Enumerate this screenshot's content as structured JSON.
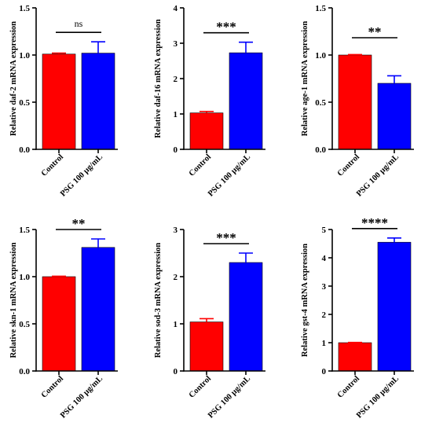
{
  "colors": {
    "control": "#ff0000",
    "treatment": "#0000ff",
    "axis": "#000000"
  },
  "chart_data": [
    {
      "type": "bar",
      "categories": [
        "Control",
        "PSG 100 μg/mL"
      ],
      "values": [
        1.01,
        1.02
      ],
      "errors": [
        0.01,
        0.12
      ],
      "ylabel": "Relative daf-2 mRNA expression",
      "ylim": [
        0,
        1.5
      ],
      "yticks": [
        "0.0",
        "0.5",
        "1.0",
        "1.5"
      ],
      "significance": "ns"
    },
    {
      "type": "bar",
      "categories": [
        "Control",
        "PSG 100 μg/mL"
      ],
      "values": [
        1.03,
        2.73
      ],
      "errors": [
        0.04,
        0.3
      ],
      "ylabel": "Relative daf-16 mRNA expression",
      "ylim": [
        0,
        4
      ],
      "yticks": [
        "0",
        "1",
        "2",
        "3",
        "4"
      ],
      "significance": "***"
    },
    {
      "type": "bar",
      "categories": [
        "Control",
        "PSG 100 μg/mL"
      ],
      "values": [
        1.0,
        0.7
      ],
      "errors": [
        0.005,
        0.08
      ],
      "ylabel": "Relative age-1 mRNA expression",
      "ylim": [
        0,
        1.5
      ],
      "yticks": [
        "0.0",
        "0.5",
        "1.0",
        "1.5"
      ],
      "significance": "**"
    },
    {
      "type": "bar",
      "categories": [
        "Control",
        "PSG 100 μg/mL"
      ],
      "values": [
        1.0,
        1.31
      ],
      "errors": [
        0.005,
        0.09
      ],
      "ylabel": "Relative skn-1 mRNA expression",
      "ylim": [
        0,
        1.5
      ],
      "yticks": [
        "0.0",
        "0.5",
        "1.0",
        "1.5"
      ],
      "significance": "**"
    },
    {
      "type": "bar",
      "categories": [
        "Control",
        "PSG 100 μg/mL"
      ],
      "values": [
        1.04,
        2.3
      ],
      "errors": [
        0.07,
        0.2
      ],
      "ylabel": "Relative sod-3 mRNA expression",
      "ylim": [
        0,
        3
      ],
      "yticks": [
        "0",
        "1",
        "2",
        "3"
      ],
      "significance": "***"
    },
    {
      "type": "bar",
      "categories": [
        "Control",
        "PSG 100 μg/mL"
      ],
      "values": [
        1.0,
        4.55
      ],
      "errors": [
        0.01,
        0.15
      ],
      "ylabel": "Relative gst-4 mRNA expression",
      "ylim": [
        0,
        5
      ],
      "yticks": [
        "0",
        "1",
        "2",
        "3",
        "4",
        "5"
      ],
      "significance": "****"
    }
  ]
}
